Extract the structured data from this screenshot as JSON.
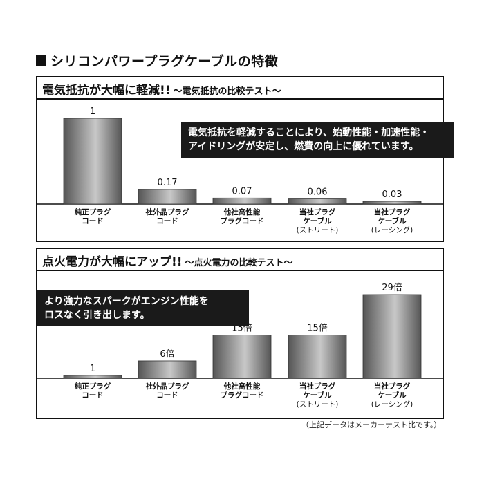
{
  "page": {
    "title": "シリコンパワープラグケーブルの特徴",
    "footnote": "（上記データはメーカーテスト比です。）"
  },
  "panel1": {
    "heading": "電気抵抗が大幅に軽減!!",
    "subheading": "〜電気抵抗の比較テスト〜",
    "callout": [
      "電気抵抗を軽減することにより、始動性能・加速性能・",
      "アイドリングが安定し、燃費の向上に優れています。"
    ]
  },
  "panel2": {
    "heading": "点火電力が大幅にアップ!!",
    "subheading": "〜点火電力の比較テスト〜",
    "callout": [
      "より強力なスパークがエンジン性能を",
      "ロスなく引き出します。"
    ]
  },
  "colors": {
    "bar_dark": "#555555",
    "bar_light": "#c8c8c8",
    "ink": "#111111",
    "callout_bg": "#1a1a1a"
  },
  "chart_data": [
    {
      "type": "bar",
      "title": "電気抵抗が大幅に軽減!!",
      "subtitle": "〜電気抵抗の比較テスト〜",
      "categories": [
        [
          "純正プラグ",
          "コード"
        ],
        [
          "社外品プラグ",
          "コード"
        ],
        [
          "他社高性能",
          "プラグコード"
        ],
        [
          "当社プラグ",
          "ケーブル",
          "(ストリート)"
        ],
        [
          "当社プラグ",
          "ケーブル",
          "(レーシング)"
        ]
      ],
      "values": [
        1,
        0.17,
        0.07,
        0.06,
        0.03
      ],
      "value_labels": [
        "1",
        "0.17",
        "0.07",
        "0.06",
        "0.03"
      ],
      "ylim": [
        0,
        1
      ],
      "xlabel": "",
      "ylabel": "",
      "grid": false
    },
    {
      "type": "bar",
      "title": "点火電力が大幅にアップ!!",
      "subtitle": "〜点火電力の比較テスト〜",
      "categories": [
        [
          "純正プラグ",
          "コード"
        ],
        [
          "社外品プラグ",
          "コード"
        ],
        [
          "他社高性能",
          "プラグコード"
        ],
        [
          "当社プラグ",
          "ケーブル",
          "(ストリート)"
        ],
        [
          "当社プラグ",
          "ケーブル",
          "(レーシング)"
        ]
      ],
      "values": [
        1,
        6,
        15,
        15,
        29
      ],
      "value_labels": [
        "1",
        "6倍",
        "15倍",
        "15倍",
        "29倍"
      ],
      "ylim": [
        0,
        29
      ],
      "xlabel": "",
      "ylabel": "",
      "grid": false
    }
  ]
}
